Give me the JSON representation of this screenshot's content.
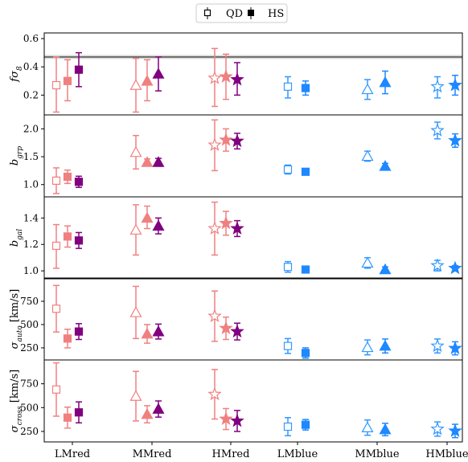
{
  "legend": {
    "open_label": "QD",
    "filled_label": "HS",
    "placement": "top-center"
  },
  "colors": {
    "red_qd": "#f08080",
    "red_hs": "#800080",
    "blue_qd": "#3399ff",
    "blue_hs": "#1e88ff",
    "axis": "#000000",
    "ref_band": "#808080"
  },
  "chart_data": {
    "type": "scatter",
    "categories": [
      "LMred",
      "MMred",
      "HMred",
      "LMblue",
      "MMblue",
      "HMblue"
    ],
    "markers": [
      "square",
      "triangle",
      "star",
      "square",
      "triangle",
      "star"
    ],
    "series": [
      {
        "name": "QD",
        "style": "open"
      },
      {
        "name": "HS",
        "style": "filled"
      }
    ],
    "panels": [
      {
        "ylabel": "fσ8",
        "ylabel_main": "fσ",
        "ylabel_sub": "8",
        "ylim": [
          0.06,
          0.64
        ],
        "yticks": [
          0.2,
          0.4,
          0.6
        ],
        "yticklabels": [
          "0.2",
          "0.4",
          "0.6"
        ],
        "reference_line": 0.47,
        "points": [
          {
            "category": "LMred",
            "sample": "QD",
            "y": 0.27,
            "err": [
              0.19,
              0.2
            ],
            "color": "red_qd"
          },
          {
            "category": "LMred",
            "sample": "HS_mid",
            "y": 0.3,
            "err": [
              0.14,
              0.15
            ],
            "color": "red_qd",
            "filled": true
          },
          {
            "category": "LMred",
            "sample": "HS",
            "y": 0.38,
            "err": [
              0.12,
              0.12
            ],
            "color": "red_hs",
            "filled": true
          },
          {
            "category": "MMred",
            "sample": "QD",
            "y": 0.27,
            "err": [
              0.19,
              0.19
            ],
            "color": "red_qd"
          },
          {
            "category": "MMred",
            "sample": "HS_mid",
            "y": 0.3,
            "err": [
              0.14,
              0.15
            ],
            "color": "red_qd",
            "filled": true
          },
          {
            "category": "MMred",
            "sample": "HS",
            "y": 0.35,
            "err": [
              0.12,
              0.12
            ],
            "color": "red_hs",
            "filled": true
          },
          {
            "category": "HMred",
            "sample": "QD",
            "y": 0.32,
            "err": [
              0.2,
              0.21
            ],
            "color": "red_qd"
          },
          {
            "category": "HMred",
            "sample": "HS_mid",
            "y": 0.33,
            "err": [
              0.16,
              0.16
            ],
            "color": "red_qd",
            "filled": true
          },
          {
            "category": "HMred",
            "sample": "HS",
            "y": 0.31,
            "err": [
              0.11,
              0.12
            ],
            "color": "red_hs",
            "filled": true
          },
          {
            "category": "LMblue",
            "sample": "QD",
            "y": 0.26,
            "err": [
              0.08,
              0.07
            ],
            "color": "blue_qd"
          },
          {
            "category": "LMblue",
            "sample": "HS",
            "y": 0.25,
            "err": [
              0.05,
              0.05
            ],
            "color": "blue_hs",
            "filled": true
          },
          {
            "category": "MMblue",
            "sample": "QD",
            "y": 0.24,
            "err": [
              0.07,
              0.07
            ],
            "color": "blue_qd"
          },
          {
            "category": "MMblue",
            "sample": "HS",
            "y": 0.29,
            "err": [
              0.08,
              0.08
            ],
            "color": "blue_hs",
            "filled": true
          },
          {
            "category": "HMblue",
            "sample": "QD",
            "y": 0.26,
            "err": [
              0.08,
              0.07
            ],
            "color": "blue_qd"
          },
          {
            "category": "HMblue",
            "sample": "HS",
            "y": 0.27,
            "err": [
              0.07,
              0.07
            ],
            "color": "blue_hs",
            "filled": true
          }
        ]
      },
      {
        "ylabel": "b_grp",
        "ylabel_main": "b",
        "ylabel_sub": "grp",
        "ylim": [
          0.78,
          2.25
        ],
        "yticks": [
          1.0,
          1.5,
          2.0
        ],
        "yticklabels": [
          "1.0",
          "1.5",
          "2.0"
        ],
        "points": [
          {
            "category": "LMred",
            "sample": "QD",
            "y": 1.07,
            "err": [
              0.23,
              0.23
            ],
            "color": "red_qd"
          },
          {
            "category": "LMred",
            "sample": "HS_mid",
            "y": 1.14,
            "err": [
              0.12,
              0.12
            ],
            "color": "red_qd",
            "filled": true
          },
          {
            "category": "LMred",
            "sample": "HS",
            "y": 1.05,
            "err": [
              0.1,
              0.1
            ],
            "color": "red_hs",
            "filled": true
          },
          {
            "category": "MMred",
            "sample": "QD",
            "y": 1.58,
            "err": [
              0.3,
              0.3
            ],
            "color": "red_qd"
          },
          {
            "category": "MMred",
            "sample": "HS_mid",
            "y": 1.4,
            "err": [
              0.06,
              0.06
            ],
            "color": "red_qd",
            "filled": true
          },
          {
            "category": "MMred",
            "sample": "HS",
            "y": 1.4,
            "err": [
              0.07,
              0.07
            ],
            "color": "red_hs",
            "filled": true
          },
          {
            "category": "HMred",
            "sample": "QD",
            "y": 1.71,
            "err": [
              0.46,
              0.45
            ],
            "color": "red_qd"
          },
          {
            "category": "HMred",
            "sample": "HS_mid",
            "y": 1.8,
            "err": [
              0.2,
              0.2
            ],
            "color": "red_qd",
            "filled": true
          },
          {
            "category": "HMred",
            "sample": "HS",
            "y": 1.78,
            "err": [
              0.14,
              0.14
            ],
            "color": "red_hs",
            "filled": true
          },
          {
            "category": "LMblue",
            "sample": "QD",
            "y": 1.27,
            "err": [
              0.08,
              0.08
            ],
            "color": "blue_qd"
          },
          {
            "category": "LMblue",
            "sample": "HS",
            "y": 1.23,
            "err": [
              0.04,
              0.04
            ],
            "color": "blue_hs",
            "filled": true
          },
          {
            "category": "MMblue",
            "sample": "QD",
            "y": 1.51,
            "err": [
              0.09,
              0.09
            ],
            "color": "blue_qd"
          },
          {
            "category": "MMblue",
            "sample": "HS",
            "y": 1.33,
            "err": [
              0.05,
              0.05
            ],
            "color": "blue_hs",
            "filled": true
          },
          {
            "category": "HMblue",
            "sample": "QD",
            "y": 1.97,
            "err": [
              0.15,
              0.15
            ],
            "color": "blue_qd"
          },
          {
            "category": "HMblue",
            "sample": "HS",
            "y": 1.79,
            "err": [
              0.12,
              0.12
            ],
            "color": "blue_hs",
            "filled": true
          }
        ]
      },
      {
        "ylabel": "b_gal",
        "ylabel_main": "b",
        "ylabel_sub": "gal",
        "ylim": [
          0.94,
          1.56
        ],
        "yticks": [
          1.0,
          1.2,
          1.4
        ],
        "yticklabels": [
          "1.0",
          "1.2",
          "1.4"
        ],
        "points": [
          {
            "category": "LMred",
            "sample": "QD",
            "y": 1.19,
            "err": [
              0.17,
              0.16
            ],
            "color": "red_qd"
          },
          {
            "category": "LMred",
            "sample": "HS_mid",
            "y": 1.26,
            "err": [
              0.08,
              0.08
            ],
            "color": "red_qd",
            "filled": true
          },
          {
            "category": "LMred",
            "sample": "HS",
            "y": 1.23,
            "err": [
              0.06,
              0.06
            ],
            "color": "red_hs",
            "filled": true
          },
          {
            "category": "MMred",
            "sample": "QD",
            "y": 1.31,
            "err": [
              0.19,
              0.19
            ],
            "color": "red_qd"
          },
          {
            "category": "MMred",
            "sample": "HS_mid",
            "y": 1.4,
            "err": [
              0.08,
              0.09
            ],
            "color": "red_qd",
            "filled": true
          },
          {
            "category": "MMred",
            "sample": "HS",
            "y": 1.34,
            "err": [
              0.06,
              0.06
            ],
            "color": "red_hs",
            "filled": true
          },
          {
            "category": "HMred",
            "sample": "QD",
            "y": 1.32,
            "err": [
              0.2,
              0.2
            ],
            "color": "red_qd"
          },
          {
            "category": "HMred",
            "sample": "HS_mid",
            "y": 1.36,
            "err": [
              0.09,
              0.09
            ],
            "color": "red_qd",
            "filled": true
          },
          {
            "category": "HMred",
            "sample": "HS",
            "y": 1.32,
            "err": [
              0.06,
              0.06
            ],
            "color": "red_hs",
            "filled": true
          },
          {
            "category": "LMblue",
            "sample": "QD",
            "y": 1.03,
            "err": [
              0.04,
              0.04
            ],
            "color": "blue_qd"
          },
          {
            "category": "LMblue",
            "sample": "HS",
            "y": 1.01,
            "err": [
              0.02,
              0.02
            ],
            "color": "blue_hs",
            "filled": true
          },
          {
            "category": "MMblue",
            "sample": "QD",
            "y": 1.06,
            "err": [
              0.04,
              0.04
            ],
            "color": "blue_qd"
          },
          {
            "category": "MMblue",
            "sample": "HS",
            "y": 1.01,
            "err": [
              0.02,
              0.02
            ],
            "color": "blue_hs",
            "filled": true
          },
          {
            "category": "HMblue",
            "sample": "QD",
            "y": 1.04,
            "err": [
              0.04,
              0.04
            ],
            "color": "blue_qd"
          },
          {
            "category": "HMblue",
            "sample": "HS",
            "y": 1.02,
            "err": [
              0.02,
              0.02
            ],
            "color": "blue_hs",
            "filled": true
          }
        ]
      },
      {
        "ylabel": "σ_auto [km/s]",
        "ylabel_main": "σ",
        "ylabel_sub": "auto",
        "ylabel_unit": " [km/s]",
        "ylim": [
          120,
          1000
        ],
        "yticks": [
          250,
          500,
          750
        ],
        "yticklabels": [
          "250",
          "500",
          "750"
        ],
        "points": [
          {
            "category": "LMred",
            "sample": "QD",
            "y": 670,
            "err": [
              250,
              250
            ],
            "color": "red_qd"
          },
          {
            "category": "LMred",
            "sample": "HS_mid",
            "y": 350,
            "err": [
              100,
              100
            ],
            "color": "red_qd",
            "filled": true
          },
          {
            "category": "LMred",
            "sample": "HS",
            "y": 425,
            "err": [
              85,
              85
            ],
            "color": "red_hs",
            "filled": true
          },
          {
            "category": "MMred",
            "sample": "QD",
            "y": 630,
            "err": [
              280,
              280
            ],
            "color": "red_qd"
          },
          {
            "category": "MMred",
            "sample": "HS_mid",
            "y": 400,
            "err": [
              100,
              100
            ],
            "color": "red_qd",
            "filled": true
          },
          {
            "category": "MMred",
            "sample": "HS",
            "y": 425,
            "err": [
              80,
              80
            ],
            "color": "red_hs",
            "filled": true
          },
          {
            "category": "HMred",
            "sample": "QD",
            "y": 590,
            "err": [
              270,
              270
            ],
            "color": "red_qd"
          },
          {
            "category": "HMred",
            "sample": "HS_mid",
            "y": 460,
            "err": [
              120,
              120
            ],
            "color": "red_qd",
            "filled": true
          },
          {
            "category": "HMred",
            "sample": "HS",
            "y": 425,
            "err": [
              90,
              90
            ],
            "color": "red_hs",
            "filled": true
          },
          {
            "category": "LMblue",
            "sample": "QD",
            "y": 270,
            "err": [
              80,
              80
            ],
            "color": "blue_qd"
          },
          {
            "category": "LMblue",
            "sample": "HS",
            "y": 195,
            "err": [
              55,
              55
            ],
            "color": "blue_hs",
            "filled": true
          },
          {
            "category": "MMblue",
            "sample": "QD",
            "y": 255,
            "err": [
              80,
              80
            ],
            "color": "blue_qd"
          },
          {
            "category": "MMblue",
            "sample": "HS",
            "y": 270,
            "err": [
              75,
              75
            ],
            "color": "blue_hs",
            "filled": true
          },
          {
            "category": "HMblue",
            "sample": "QD",
            "y": 270,
            "err": [
              75,
              75
            ],
            "color": "blue_qd"
          },
          {
            "category": "HMblue",
            "sample": "HS",
            "y": 245,
            "err": [
              70,
              70
            ],
            "color": "blue_hs",
            "filled": true
          }
        ]
      },
      {
        "ylabel": "σ_cross [km/s]",
        "ylabel_main": "σ",
        "ylabel_sub": "cross",
        "ylabel_unit": " [km/s]",
        "ylim": [
          140,
          1000
        ],
        "yticks": [
          250,
          500,
          750
        ],
        "yticklabels": [
          "250",
          "500",
          "750"
        ],
        "points": [
          {
            "category": "LMred",
            "sample": "QD",
            "y": 690,
            "err": [
              280,
              280
            ],
            "color": "red_qd"
          },
          {
            "category": "LMred",
            "sample": "HS_mid",
            "y": 395,
            "err": [
              110,
              110
            ],
            "color": "red_qd",
            "filled": true
          },
          {
            "category": "LMred",
            "sample": "HS",
            "y": 450,
            "err": [
              110,
              110
            ],
            "color": "red_hs",
            "filled": true
          },
          {
            "category": "MMred",
            "sample": "QD",
            "y": 620,
            "err": [
              260,
              260
            ],
            "color": "red_qd"
          },
          {
            "category": "MMred",
            "sample": "HS_mid",
            "y": 430,
            "err": [
              90,
              90
            ],
            "color": "red_qd",
            "filled": true
          },
          {
            "category": "MMred",
            "sample": "HS",
            "y": 485,
            "err": [
              85,
              85
            ],
            "color": "red_hs",
            "filled": true
          },
          {
            "category": "HMred",
            "sample": "QD",
            "y": 640,
            "err": [
              260,
              260
            ],
            "color": "red_qd"
          },
          {
            "category": "HMred",
            "sample": "HS_mid",
            "y": 380,
            "err": [
              110,
              110
            ],
            "color": "red_qd",
            "filled": true
          },
          {
            "category": "HMred",
            "sample": "HS",
            "y": 360,
            "err": [
              110,
              110
            ],
            "color": "red_hs",
            "filled": true
          },
          {
            "category": "LMblue",
            "sample": "QD",
            "y": 300,
            "err": [
              95,
              95
            ],
            "color": "blue_qd"
          },
          {
            "category": "LMblue",
            "sample": "HS",
            "y": 320,
            "err": [
              55,
              55
            ],
            "color": "blue_hs",
            "filled": true
          },
          {
            "category": "MMblue",
            "sample": "QD",
            "y": 290,
            "err": [
              80,
              80
            ],
            "color": "blue_qd"
          },
          {
            "category": "MMblue",
            "sample": "HS",
            "y": 270,
            "err": [
              65,
              65
            ],
            "color": "blue_hs",
            "filled": true
          },
          {
            "category": "HMblue",
            "sample": "QD",
            "y": 275,
            "err": [
              75,
              75
            ],
            "color": "blue_qd"
          },
          {
            "category": "HMblue",
            "sample": "HS",
            "y": 255,
            "err": [
              70,
              70
            ],
            "color": "blue_hs",
            "filled": true
          }
        ]
      }
    ]
  }
}
